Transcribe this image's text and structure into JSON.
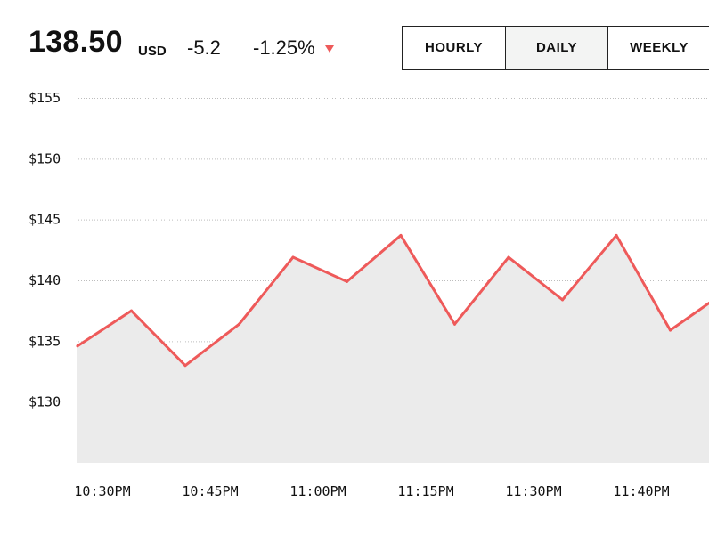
{
  "quote": {
    "price": "138.50",
    "currency": "USD",
    "change": "-5.2",
    "change_percent": "-1.25%",
    "direction_icon": "triangle-down-icon"
  },
  "tabs": [
    {
      "label": "HOURLY",
      "active": false
    },
    {
      "label": "DAILY",
      "active": true
    },
    {
      "label": "WEEKLY",
      "active": false
    }
  ],
  "colors": {
    "line": "#ee5a5a",
    "area": "#ebebeb",
    "grid": "#bdbdbd",
    "down_indicator": "#ee5a5a"
  },
  "chart_data": {
    "type": "area",
    "y_tick_labels": [
      "$130",
      "$135",
      "$140",
      "$145",
      "$150",
      "$155"
    ],
    "y_ticks": [
      130,
      135,
      140,
      145,
      150,
      155
    ],
    "ylim": [
      125,
      155
    ],
    "x_tick_labels": [
      "10:30PM",
      "10:45PM",
      "11:00PM",
      "11:15PM",
      "11:30PM",
      "11:40PM"
    ],
    "x_tick_index": [
      0,
      2,
      4,
      6,
      8,
      10
    ],
    "grid": "horizontal-dotted",
    "series": [
      {
        "values": [
          134.6,
          137.5,
          133.0,
          136.4,
          141.9,
          139.9,
          143.7,
          136.4,
          141.9,
          138.4,
          143.7,
          135.9,
          139.0
        ]
      }
    ]
  }
}
